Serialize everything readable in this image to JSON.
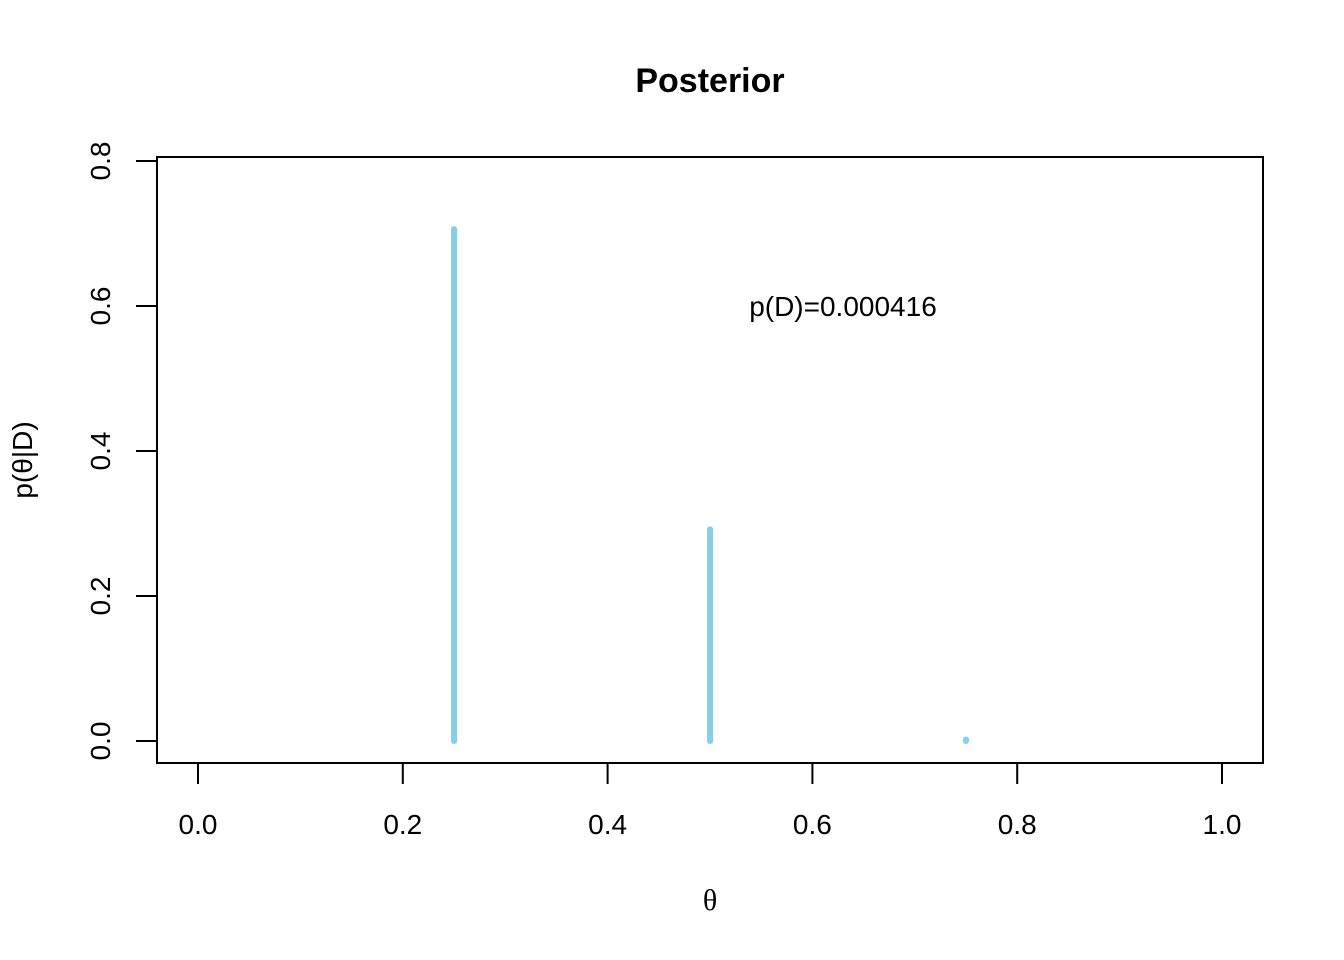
{
  "chart_data": {
    "type": "bar",
    "title": "Posterior",
    "xlabel": "θ",
    "ylabel": "p(θ|D)",
    "xlim": [
      0.0,
      1.0
    ],
    "ylim": [
      0.0,
      0.8
    ],
    "xticks": [
      "0.0",
      "0.2",
      "0.4",
      "0.6",
      "0.8",
      "1.0"
    ],
    "yticks": [
      "0.0",
      "0.2",
      "0.4",
      "0.6",
      "0.8"
    ],
    "x": [
      0.0,
      0.25,
      0.5,
      0.75,
      1.0
    ],
    "values": [
      0.0,
      0.706,
      0.292,
      0.002,
      0.0
    ],
    "annotation": {
      "text": "p(D)=0.000416",
      "x": 0.55,
      "y": 0.6
    },
    "color": "#87CEEB",
    "grid": false
  }
}
